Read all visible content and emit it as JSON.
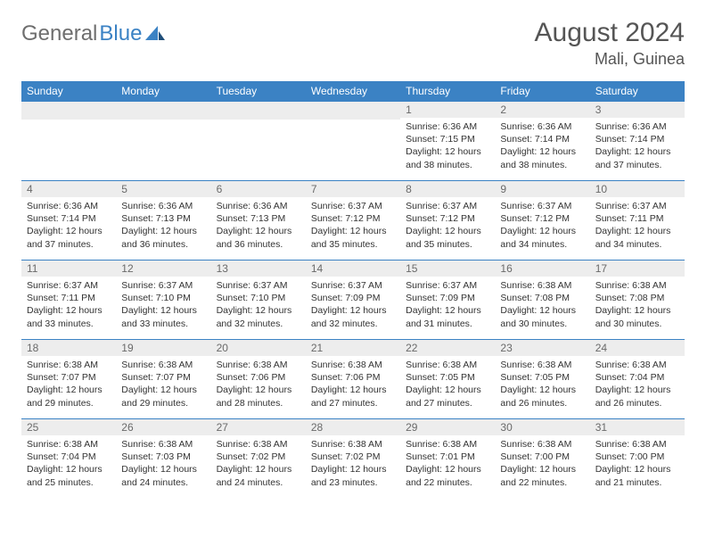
{
  "brand": {
    "part1": "General",
    "part2": "Blue"
  },
  "title": "August 2024",
  "location": "Mali, Guinea",
  "colors": {
    "header_bg": "#3b82c4",
    "header_text": "#ffffff",
    "daynum_bg": "#ededed",
    "daynum_text": "#6a6a6a",
    "border": "#3b82c4",
    "body_text": "#333333",
    "brand_gray": "#6e6e6e",
    "brand_blue": "#3b82c4",
    "page_bg": "#ffffff"
  },
  "weekdays": [
    "Sunday",
    "Monday",
    "Tuesday",
    "Wednesday",
    "Thursday",
    "Friday",
    "Saturday"
  ],
  "weeks": [
    [
      {
        "n": "",
        "sr": "",
        "ss": "",
        "dl": ""
      },
      {
        "n": "",
        "sr": "",
        "ss": "",
        "dl": ""
      },
      {
        "n": "",
        "sr": "",
        "ss": "",
        "dl": ""
      },
      {
        "n": "",
        "sr": "",
        "ss": "",
        "dl": ""
      },
      {
        "n": "1",
        "sr": "Sunrise: 6:36 AM",
        "ss": "Sunset: 7:15 PM",
        "dl": "Daylight: 12 hours and 38 minutes."
      },
      {
        "n": "2",
        "sr": "Sunrise: 6:36 AM",
        "ss": "Sunset: 7:14 PM",
        "dl": "Daylight: 12 hours and 38 minutes."
      },
      {
        "n": "3",
        "sr": "Sunrise: 6:36 AM",
        "ss": "Sunset: 7:14 PM",
        "dl": "Daylight: 12 hours and 37 minutes."
      }
    ],
    [
      {
        "n": "4",
        "sr": "Sunrise: 6:36 AM",
        "ss": "Sunset: 7:14 PM",
        "dl": "Daylight: 12 hours and 37 minutes."
      },
      {
        "n": "5",
        "sr": "Sunrise: 6:36 AM",
        "ss": "Sunset: 7:13 PM",
        "dl": "Daylight: 12 hours and 36 minutes."
      },
      {
        "n": "6",
        "sr": "Sunrise: 6:36 AM",
        "ss": "Sunset: 7:13 PM",
        "dl": "Daylight: 12 hours and 36 minutes."
      },
      {
        "n": "7",
        "sr": "Sunrise: 6:37 AM",
        "ss": "Sunset: 7:12 PM",
        "dl": "Daylight: 12 hours and 35 minutes."
      },
      {
        "n": "8",
        "sr": "Sunrise: 6:37 AM",
        "ss": "Sunset: 7:12 PM",
        "dl": "Daylight: 12 hours and 35 minutes."
      },
      {
        "n": "9",
        "sr": "Sunrise: 6:37 AM",
        "ss": "Sunset: 7:12 PM",
        "dl": "Daylight: 12 hours and 34 minutes."
      },
      {
        "n": "10",
        "sr": "Sunrise: 6:37 AM",
        "ss": "Sunset: 7:11 PM",
        "dl": "Daylight: 12 hours and 34 minutes."
      }
    ],
    [
      {
        "n": "11",
        "sr": "Sunrise: 6:37 AM",
        "ss": "Sunset: 7:11 PM",
        "dl": "Daylight: 12 hours and 33 minutes."
      },
      {
        "n": "12",
        "sr": "Sunrise: 6:37 AM",
        "ss": "Sunset: 7:10 PM",
        "dl": "Daylight: 12 hours and 33 minutes."
      },
      {
        "n": "13",
        "sr": "Sunrise: 6:37 AM",
        "ss": "Sunset: 7:10 PM",
        "dl": "Daylight: 12 hours and 32 minutes."
      },
      {
        "n": "14",
        "sr": "Sunrise: 6:37 AM",
        "ss": "Sunset: 7:09 PM",
        "dl": "Daylight: 12 hours and 32 minutes."
      },
      {
        "n": "15",
        "sr": "Sunrise: 6:37 AM",
        "ss": "Sunset: 7:09 PM",
        "dl": "Daylight: 12 hours and 31 minutes."
      },
      {
        "n": "16",
        "sr": "Sunrise: 6:38 AM",
        "ss": "Sunset: 7:08 PM",
        "dl": "Daylight: 12 hours and 30 minutes."
      },
      {
        "n": "17",
        "sr": "Sunrise: 6:38 AM",
        "ss": "Sunset: 7:08 PM",
        "dl": "Daylight: 12 hours and 30 minutes."
      }
    ],
    [
      {
        "n": "18",
        "sr": "Sunrise: 6:38 AM",
        "ss": "Sunset: 7:07 PM",
        "dl": "Daylight: 12 hours and 29 minutes."
      },
      {
        "n": "19",
        "sr": "Sunrise: 6:38 AM",
        "ss": "Sunset: 7:07 PM",
        "dl": "Daylight: 12 hours and 29 minutes."
      },
      {
        "n": "20",
        "sr": "Sunrise: 6:38 AM",
        "ss": "Sunset: 7:06 PM",
        "dl": "Daylight: 12 hours and 28 minutes."
      },
      {
        "n": "21",
        "sr": "Sunrise: 6:38 AM",
        "ss": "Sunset: 7:06 PM",
        "dl": "Daylight: 12 hours and 27 minutes."
      },
      {
        "n": "22",
        "sr": "Sunrise: 6:38 AM",
        "ss": "Sunset: 7:05 PM",
        "dl": "Daylight: 12 hours and 27 minutes."
      },
      {
        "n": "23",
        "sr": "Sunrise: 6:38 AM",
        "ss": "Sunset: 7:05 PM",
        "dl": "Daylight: 12 hours and 26 minutes."
      },
      {
        "n": "24",
        "sr": "Sunrise: 6:38 AM",
        "ss": "Sunset: 7:04 PM",
        "dl": "Daylight: 12 hours and 26 minutes."
      }
    ],
    [
      {
        "n": "25",
        "sr": "Sunrise: 6:38 AM",
        "ss": "Sunset: 7:04 PM",
        "dl": "Daylight: 12 hours and 25 minutes."
      },
      {
        "n": "26",
        "sr": "Sunrise: 6:38 AM",
        "ss": "Sunset: 7:03 PM",
        "dl": "Daylight: 12 hours and 24 minutes."
      },
      {
        "n": "27",
        "sr": "Sunrise: 6:38 AM",
        "ss": "Sunset: 7:02 PM",
        "dl": "Daylight: 12 hours and 24 minutes."
      },
      {
        "n": "28",
        "sr": "Sunrise: 6:38 AM",
        "ss": "Sunset: 7:02 PM",
        "dl": "Daylight: 12 hours and 23 minutes."
      },
      {
        "n": "29",
        "sr": "Sunrise: 6:38 AM",
        "ss": "Sunset: 7:01 PM",
        "dl": "Daylight: 12 hours and 22 minutes."
      },
      {
        "n": "30",
        "sr": "Sunrise: 6:38 AM",
        "ss": "Sunset: 7:00 PM",
        "dl": "Daylight: 12 hours and 22 minutes."
      },
      {
        "n": "31",
        "sr": "Sunrise: 6:38 AM",
        "ss": "Sunset: 7:00 PM",
        "dl": "Daylight: 12 hours and 21 minutes."
      }
    ]
  ]
}
